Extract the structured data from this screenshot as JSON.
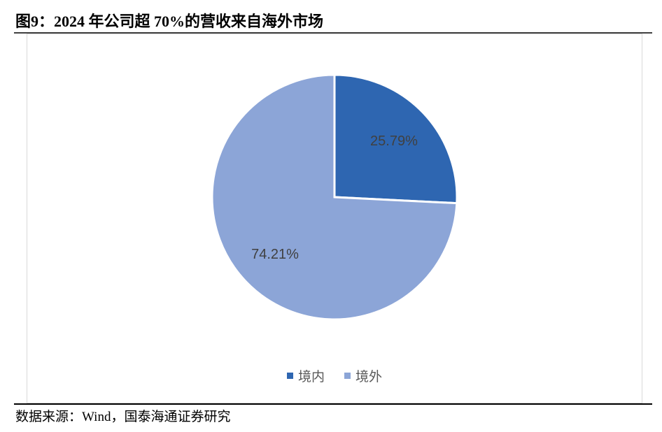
{
  "chart_data": {
    "type": "pie",
    "title": "图9：2024 年公司超 70%的营收来自海外市场",
    "categories": [
      "境内",
      "境外"
    ],
    "values": [
      25.79,
      74.21
    ],
    "value_labels": [
      "25.79%",
      "74.21%"
    ],
    "colors": [
      "#2e66b1",
      "#8ca5d7"
    ],
    "legend": "bottom",
    "source": "数据来源：Wind，国泰海通证券研究"
  }
}
